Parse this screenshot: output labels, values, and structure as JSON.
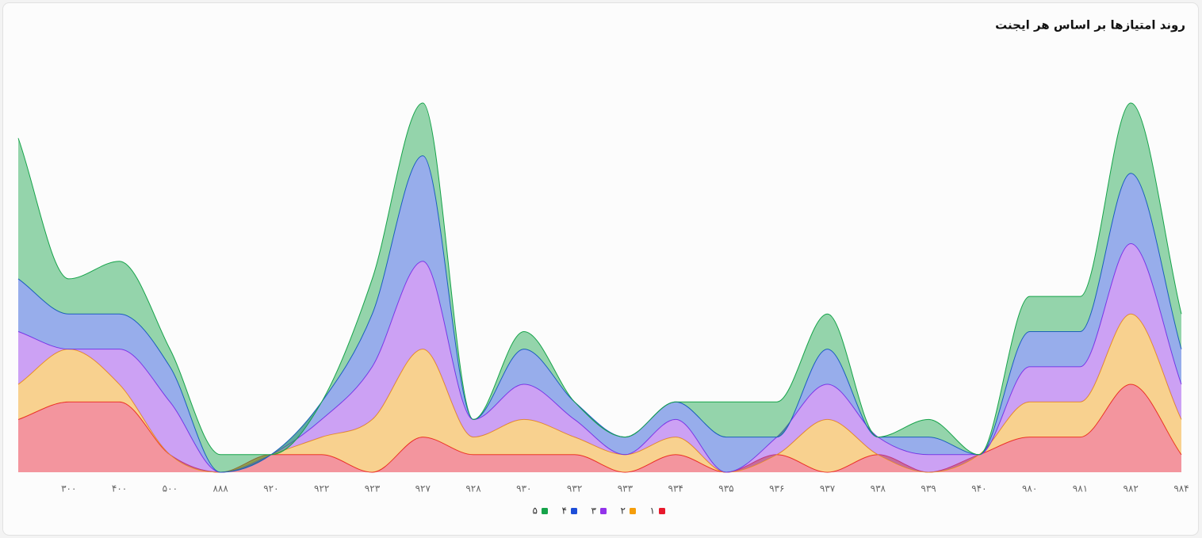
{
  "chart_data": {
    "type": "stacked-area",
    "title": "روند امتیازها بر اساس هر ایجنت",
    "categories": [
      null,
      "۳۰۰",
      "۴۰۰",
      "۵۰۰",
      "۸۸۸",
      "۹۲۰",
      "۹۲۲",
      "۹۲۳",
      "۹۲۷",
      "۹۲۸",
      "۹۳۰",
      "۹۳۲",
      "۹۳۳",
      "۹۳۴",
      "۹۳۵",
      "۹۳۶",
      "۹۳۷",
      "۹۳۸",
      "۹۳۹",
      "۹۴۰",
      "۹۸۰",
      "۹۸۱",
      "۹۸۲",
      "۹۸۴"
    ],
    "series": [
      {
        "name": "۱",
        "color": "#e8192c",
        "values": [
          3,
          4,
          4,
          1,
          0,
          1,
          1,
          0,
          2,
          1,
          1,
          1,
          0,
          1,
          0,
          1,
          0,
          1,
          0,
          1,
          2,
          2,
          5,
          1
        ]
      },
      {
        "name": "۲",
        "color": "#f59e0b",
        "values": [
          2,
          3,
          1,
          0,
          0,
          0,
          1,
          3,
          5,
          1,
          2,
          1,
          1,
          1,
          0,
          0,
          3,
          0,
          0,
          0,
          2,
          2,
          4,
          2
        ]
      },
      {
        "name": "۳",
        "color": "#9333ea",
        "values": [
          3,
          0,
          2,
          3,
          0,
          0,
          1,
          3,
          5,
          1,
          2,
          1,
          0,
          1,
          0,
          1,
          2,
          1,
          1,
          0,
          2,
          2,
          4,
          2
        ]
      },
      {
        "name": "۴",
        "color": "#1d4ed8",
        "values": [
          3,
          2,
          2,
          2,
          0,
          0,
          1,
          3,
          6,
          0,
          2,
          1,
          1,
          1,
          2,
          0,
          2,
          0,
          1,
          0,
          2,
          2,
          4,
          2
        ]
      },
      {
        "name": "۵",
        "color": "#16a34a",
        "values": [
          8,
          2,
          3,
          1,
          1,
          0,
          0,
          2,
          3,
          0,
          1,
          0,
          0,
          0,
          2,
          2,
          2,
          0,
          1,
          0,
          2,
          2,
          4,
          2
        ]
      }
    ]
  }
}
